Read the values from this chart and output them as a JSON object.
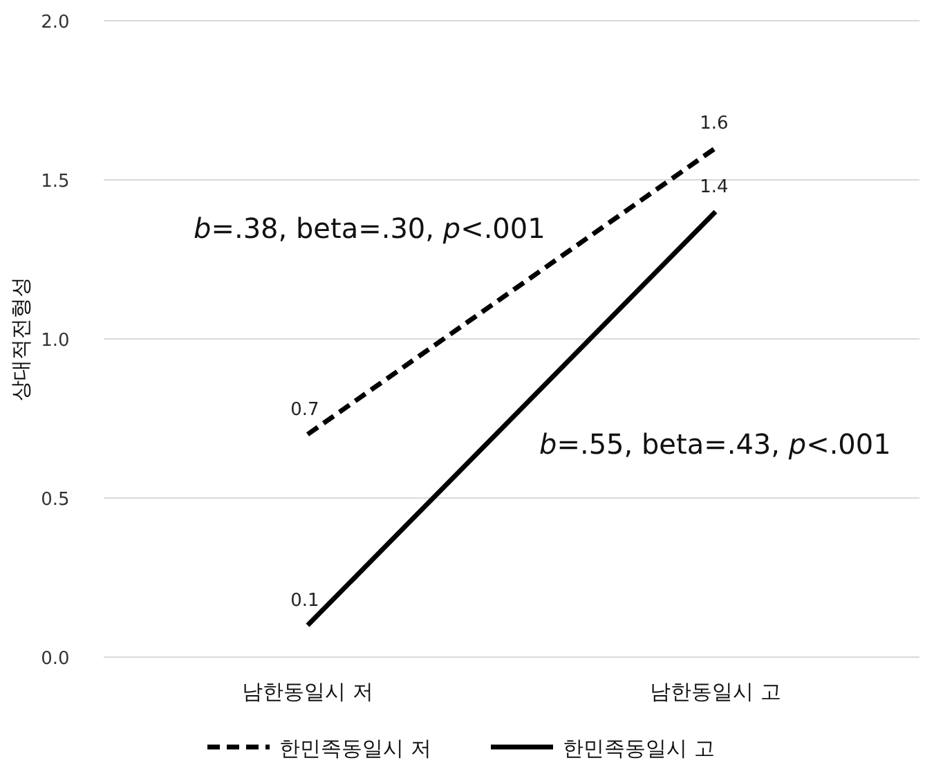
{
  "chart_data": {
    "type": "line",
    "ylabel": "상대적전형성",
    "categories": [
      "남한동일시 저",
      "남한동일시 고"
    ],
    "series": [
      {
        "name": "한민족동일시 저",
        "color": "#000000",
        "values": [
          0.7,
          1.6
        ],
        "line_style": "dashed"
      },
      {
        "name": "한민족동일시 고",
        "color": "#000000",
        "values": [
          0.1,
          1.4
        ],
        "line_style": "solid"
      }
    ],
    "ylim": [
      0,
      2
    ],
    "yticks": [
      {
        "value": 0,
        "label": "0.0"
      },
      {
        "value": 0.5,
        "label": "0.5"
      },
      {
        "value": 1,
        "label": "1.0"
      },
      {
        "value": 1.5,
        "label": "1.5"
      },
      {
        "value": 2,
        "label": "2.0"
      }
    ],
    "grid": "y",
    "legend": "bottom",
    "data_labels": true,
    "marker": "none",
    "annotations": [
      "*b*=.38, beta=.30, *p*<.001",
      "*b*=.55, beta=.43, *p*<.001"
    ]
  }
}
